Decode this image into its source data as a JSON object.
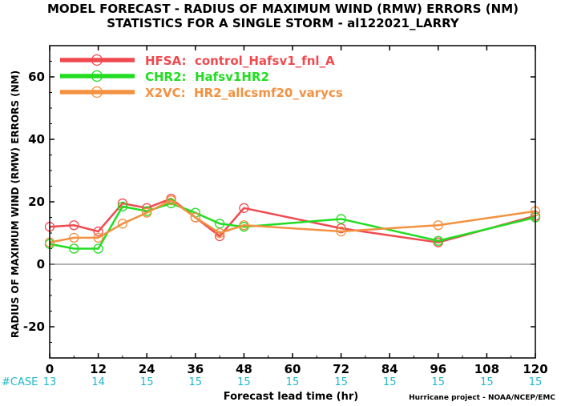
{
  "title_line1": "MODEL FORECAST - RADIUS OF MAXIMUM WIND (RMW) ERRORS (NM)",
  "title_line2": "STATISTICS FOR A SINGLE STORM - al122021_LARRY",
  "ylabel": "RADIUS OF MAXIMUM WIND (RMW) ERRORS (NM)",
  "xlabel": "Forecast lead time (hr)",
  "credit": "Hurricane project - NOAA/NCEP/EMC",
  "case_label": "#CASE",
  "case_counts": [
    "13",
    "14",
    "15",
    "15",
    "15",
    "15",
    "15",
    "15",
    "15",
    "15",
    "15"
  ],
  "case_x": [
    0,
    12,
    24,
    36,
    48,
    60,
    72,
    84,
    96,
    108,
    120
  ],
  "chart_data": {
    "type": "line",
    "xlim": [
      0,
      120
    ],
    "ylim": [
      -30,
      70
    ],
    "xticks": [
      0,
      12,
      24,
      36,
      48,
      60,
      72,
      84,
      96,
      108,
      120
    ],
    "xtick_labels": [
      "0",
      "12",
      "24",
      "36",
      "48",
      "60",
      "72",
      "84",
      "96",
      "108",
      "120"
    ],
    "yticks": [
      -20,
      0,
      20,
      40,
      60
    ],
    "ytick_labels": [
      "-20",
      "0",
      "20",
      "40",
      "60"
    ],
    "zero_line": true,
    "grid": false,
    "legend_position": "top-left",
    "series": [
      {
        "name": "HFSA:  control_Hafsv1_fnl_A",
        "color": "#f04a4f",
        "x": [
          0,
          6,
          12,
          18,
          24,
          30,
          36,
          42,
          48,
          72,
          96,
          120
        ],
        "y": [
          12.0,
          12.5,
          10.5,
          19.5,
          18.0,
          21.0,
          15.0,
          9.0,
          18.0,
          11.5,
          7.0,
          15.5
        ]
      },
      {
        "name": "CHR2:  Hafsv1HR2",
        "color": "#22dd22",
        "x": [
          0,
          6,
          12,
          18,
          24,
          30,
          36,
          42,
          48,
          72,
          96,
          120
        ],
        "y": [
          6.5,
          5.0,
          5.0,
          18.5,
          17.0,
          19.5,
          16.5,
          13.0,
          12.0,
          14.5,
          7.5,
          15.0
        ]
      },
      {
        "name": "X2VC:  HR2_allcsmf20_varycs",
        "color": "#f39140",
        "x": [
          0,
          6,
          12,
          18,
          24,
          30,
          36,
          42,
          48,
          72,
          96,
          120
        ],
        "y": [
          7.0,
          8.5,
          8.5,
          13.0,
          16.5,
          20.5,
          15.0,
          10.0,
          12.5,
          10.5,
          12.5,
          17.0
        ]
      }
    ]
  }
}
